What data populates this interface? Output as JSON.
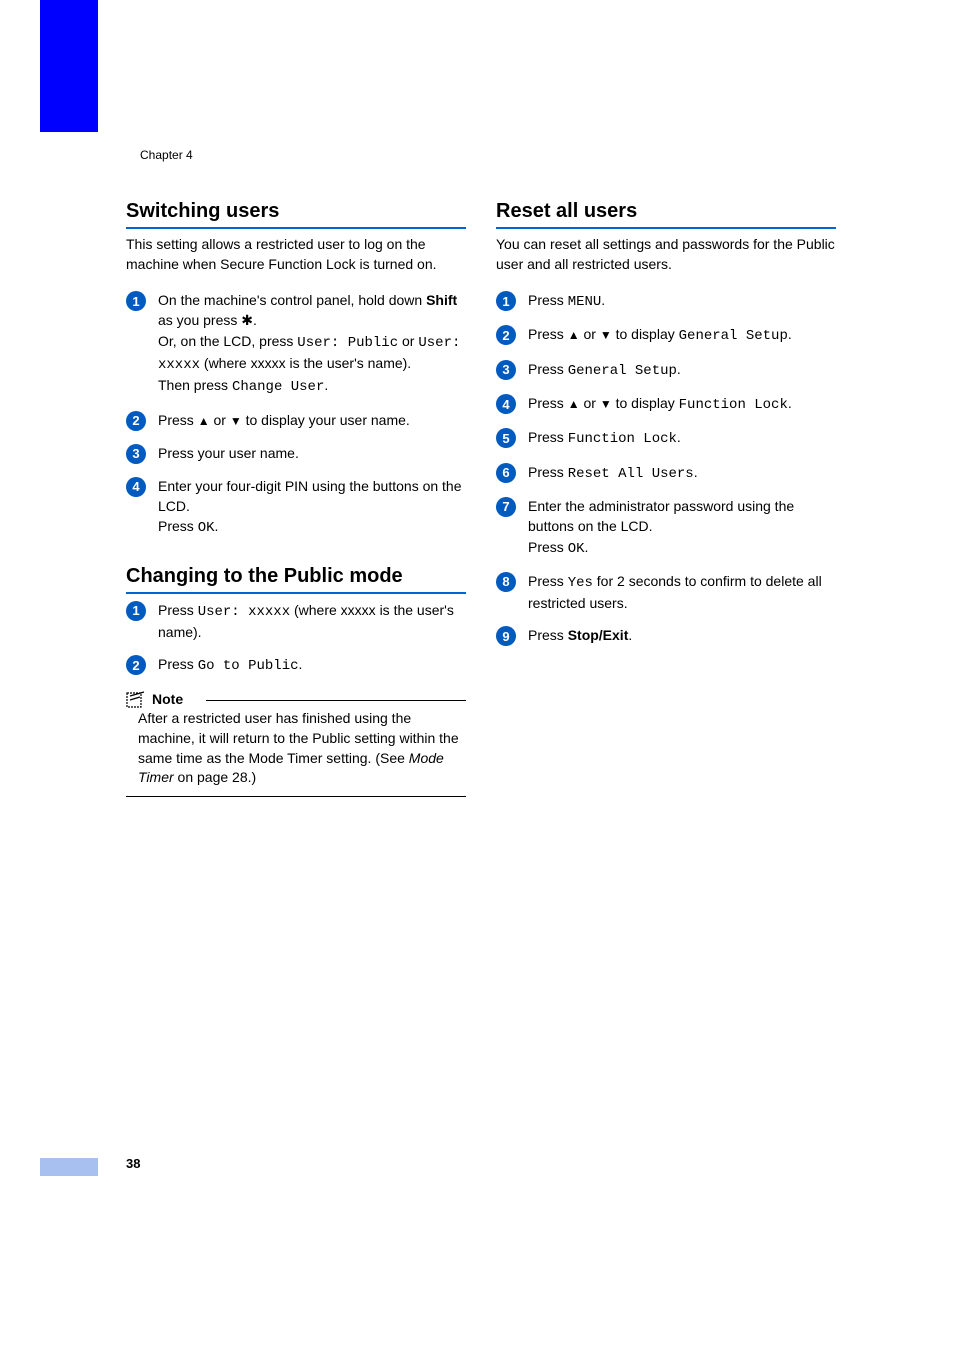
{
  "chapter_label": "Chapter 4",
  "page_number": "38",
  "colors": {
    "accent": "#0000ff",
    "tab": "#a8c0f0",
    "heading_underline": "#0066cc",
    "step_circle": "#005ac0",
    "text": "#000000",
    "background": "#ffffff"
  },
  "typography": {
    "body_family": "Arial",
    "body_size": 14,
    "mono_family": "Courier New",
    "heading_size": 20
  },
  "left_column": {
    "section1": {
      "title": "Switching users",
      "intro": "This setting allows a restricted user to log on the machine when Secure Function Lock is turned on.",
      "steps": [
        {
          "n": "1",
          "parts": [
            {
              "t": "text",
              "v": "On the machine's control panel, hold down "
            },
            {
              "t": "bold",
              "v": "Shift"
            },
            {
              "t": "text",
              "v": " as you press "
            },
            {
              "t": "star",
              "v": "✱"
            },
            {
              "t": "text",
              "v": "."
            },
            {
              "t": "br"
            },
            {
              "t": "text",
              "v": "Or, on the LCD, press "
            },
            {
              "t": "mono",
              "v": "User: Public"
            },
            {
              "t": "text",
              "v": " or "
            },
            {
              "t": "mono",
              "v": "User: xxxxx"
            },
            {
              "t": "text",
              "v": " (where xxxxx is the user's name)."
            },
            {
              "t": "br"
            },
            {
              "t": "text",
              "v": "Then press "
            },
            {
              "t": "mono",
              "v": "Change User"
            },
            {
              "t": "text",
              "v": "."
            }
          ]
        },
        {
          "n": "2",
          "parts": [
            {
              "t": "text",
              "v": "Press "
            },
            {
              "t": "arrow",
              "v": "▲"
            },
            {
              "t": "text",
              "v": " or "
            },
            {
              "t": "arrow",
              "v": "▼"
            },
            {
              "t": "text",
              "v": " to display your user name."
            }
          ]
        },
        {
          "n": "3",
          "parts": [
            {
              "t": "text",
              "v": "Press your user name."
            }
          ]
        },
        {
          "n": "4",
          "parts": [
            {
              "t": "text",
              "v": "Enter your four-digit PIN using the buttons on the LCD."
            },
            {
              "t": "br"
            },
            {
              "t": "text",
              "v": "Press "
            },
            {
              "t": "mono",
              "v": "OK"
            },
            {
              "t": "text",
              "v": "."
            }
          ]
        }
      ]
    },
    "section2": {
      "title": "Changing to the Public mode",
      "steps": [
        {
          "n": "1",
          "parts": [
            {
              "t": "text",
              "v": "Press "
            },
            {
              "t": "mono",
              "v": "User: xxxxx"
            },
            {
              "t": "text",
              "v": " (where xxxxx is the user's name)."
            }
          ]
        },
        {
          "n": "2",
          "parts": [
            {
              "t": "text",
              "v": "Press "
            },
            {
              "t": "mono",
              "v": "Go to Public"
            },
            {
              "t": "text",
              "v": "."
            }
          ]
        }
      ],
      "note": {
        "title": "Note",
        "body_parts": [
          {
            "t": "text",
            "v": "After a restricted user has finished using the machine, it will return to the Public setting within the same time as the Mode Timer setting. (See "
          },
          {
            "t": "italic",
            "v": "Mode Timer"
          },
          {
            "t": "text",
            "v": " on page 28.)"
          }
        ]
      }
    }
  },
  "right_column": {
    "section1": {
      "title": "Reset all users",
      "intro": "You can reset all settings and passwords for the Public user and all restricted users.",
      "steps": [
        {
          "n": "1",
          "parts": [
            {
              "t": "text",
              "v": "Press "
            },
            {
              "t": "mono",
              "v": "MENU"
            },
            {
              "t": "text",
              "v": "."
            }
          ]
        },
        {
          "n": "2",
          "parts": [
            {
              "t": "text",
              "v": "Press "
            },
            {
              "t": "arrow",
              "v": "▲"
            },
            {
              "t": "text",
              "v": " or "
            },
            {
              "t": "arrow",
              "v": "▼"
            },
            {
              "t": "text",
              "v": " to display "
            },
            {
              "t": "mono",
              "v": "General Setup"
            },
            {
              "t": "text",
              "v": "."
            }
          ]
        },
        {
          "n": "3",
          "parts": [
            {
              "t": "text",
              "v": "Press "
            },
            {
              "t": "mono",
              "v": "General Setup"
            },
            {
              "t": "text",
              "v": "."
            }
          ]
        },
        {
          "n": "4",
          "parts": [
            {
              "t": "text",
              "v": "Press "
            },
            {
              "t": "arrow",
              "v": "▲"
            },
            {
              "t": "text",
              "v": " or "
            },
            {
              "t": "arrow",
              "v": "▼"
            },
            {
              "t": "text",
              "v": " to display "
            },
            {
              "t": "mono",
              "v": "Function Lock"
            },
            {
              "t": "text",
              "v": "."
            }
          ]
        },
        {
          "n": "5",
          "parts": [
            {
              "t": "text",
              "v": "Press "
            },
            {
              "t": "mono",
              "v": "Function Lock"
            },
            {
              "t": "text",
              "v": "."
            }
          ]
        },
        {
          "n": "6",
          "parts": [
            {
              "t": "text",
              "v": "Press "
            },
            {
              "t": "mono",
              "v": "Reset All Users"
            },
            {
              "t": "text",
              "v": "."
            }
          ]
        },
        {
          "n": "7",
          "parts": [
            {
              "t": "text",
              "v": "Enter the administrator password using the buttons on the LCD."
            },
            {
              "t": "br"
            },
            {
              "t": "text",
              "v": "Press "
            },
            {
              "t": "mono",
              "v": "OK"
            },
            {
              "t": "text",
              "v": "."
            }
          ]
        },
        {
          "n": "8",
          "parts": [
            {
              "t": "text",
              "v": "Press "
            },
            {
              "t": "mono",
              "v": "Yes"
            },
            {
              "t": "text",
              "v": " for 2 seconds to confirm to delete all restricted users."
            }
          ]
        },
        {
          "n": "9",
          "parts": [
            {
              "t": "text",
              "v": "Press "
            },
            {
              "t": "bold",
              "v": "Stop/Exit"
            },
            {
              "t": "text",
              "v": "."
            }
          ]
        }
      ]
    }
  }
}
